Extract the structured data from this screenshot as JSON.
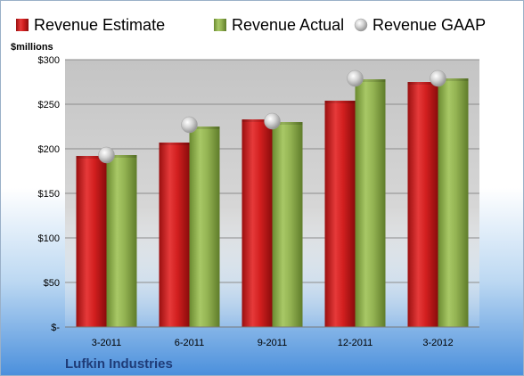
{
  "chart_data": {
    "type": "bar",
    "ylabel": "$millions",
    "company": "Lufkin Industries",
    "categories": [
      "3-2011",
      "6-2011",
      "9-2011",
      "12-2011",
      "3-2012"
    ],
    "series": [
      {
        "name": "Revenue Estimate",
        "kind": "bar",
        "color": "#cc1a1a",
        "values": [
          192,
          207,
          233,
          254,
          275
        ]
      },
      {
        "name": "Revenue Actual",
        "kind": "bar",
        "color": "#8fb04a",
        "values": [
          193,
          225,
          230,
          278,
          279
        ]
      },
      {
        "name": "Revenue GAAP",
        "kind": "marker",
        "color": "#c8c8c8",
        "values": [
          193,
          227,
          231,
          279,
          279
        ]
      }
    ],
    "yticks": [
      {
        "value": 0,
        "label": "$-"
      },
      {
        "value": 50,
        "label": "$50"
      },
      {
        "value": 100,
        "label": "$100"
      },
      {
        "value": 150,
        "label": "$150"
      },
      {
        "value": 200,
        "label": "$200"
      },
      {
        "value": 250,
        "label": "$250"
      },
      {
        "value": 300,
        "label": "$300"
      }
    ],
    "ylim": [
      0,
      300
    ],
    "grid": true,
    "legend_position": "top"
  }
}
